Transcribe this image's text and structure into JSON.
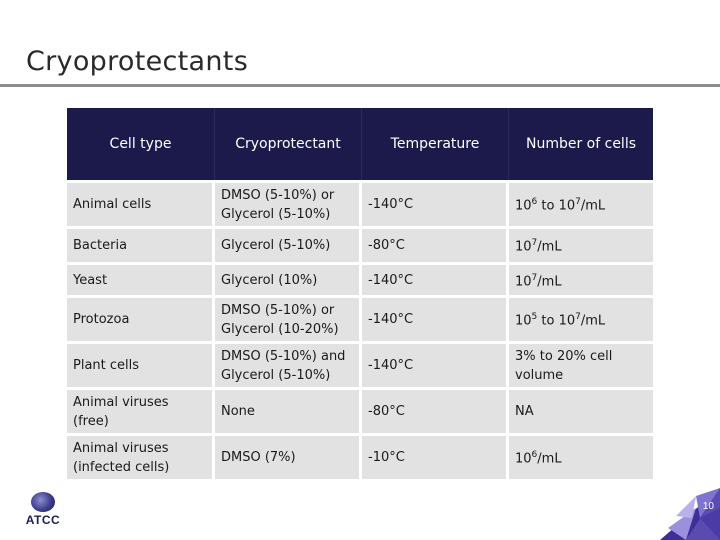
{
  "slide": {
    "title": "Cryoprotectants",
    "page_number": "10"
  },
  "logo": {
    "text": "ATCC"
  },
  "table": {
    "headers": [
      "Cell type",
      "Cryoprotectant",
      "Temperature",
      "Number of cells"
    ],
    "rows": [
      {
        "cell_type": [
          "Animal cells"
        ],
        "cryoprotectant": [
          "DMSO (5-10%)  or",
          "Glycerol (5-10%)"
        ],
        "temperature": "-140°C",
        "cells_base": "10",
        "cells_exp": "6",
        "cells_mid": " to 10",
        "cells_exp2": "7",
        "cells_tail": "/mL",
        "cells_lines": null
      },
      {
        "cell_type": [
          "Bacteria"
        ],
        "cryoprotectant": [
          "Glycerol (5-10%)"
        ],
        "temperature": "-80°C",
        "cells_base": "10",
        "cells_exp": "7",
        "cells_mid": "",
        "cells_exp2": "",
        "cells_tail": "/mL",
        "cells_lines": null
      },
      {
        "cell_type": [
          "Yeast"
        ],
        "cryoprotectant": [
          "Glycerol (10%)"
        ],
        "temperature": "-140°C",
        "cells_base": "10",
        "cells_exp": "7",
        "cells_mid": "",
        "cells_exp2": "",
        "cells_tail": "/mL",
        "cells_lines": null
      },
      {
        "cell_type": [
          "Protozoa"
        ],
        "cryoprotectant": [
          "DMSO (5-10%) or",
          "Glycerol (10-20%)"
        ],
        "temperature": "-140°C",
        "cells_base": "10",
        "cells_exp": "5",
        "cells_mid": " to 10",
        "cells_exp2": "7",
        "cells_tail": "/mL",
        "cells_lines": null
      },
      {
        "cell_type": [
          "Plant cells"
        ],
        "cryoprotectant": [
          "DMSO (5-10%) and",
          "Glycerol (5-10%)"
        ],
        "temperature": "-140°C",
        "cells_base": "",
        "cells_exp": "",
        "cells_mid": "",
        "cells_exp2": "",
        "cells_tail": "",
        "cells_lines": [
          "3% to 20% cell",
          "volume"
        ]
      },
      {
        "cell_type": [
          "Animal viruses",
          "(free)"
        ],
        "cryoprotectant": [
          "None"
        ],
        "temperature": "-80°C",
        "cells_base": "",
        "cells_exp": "",
        "cells_mid": "",
        "cells_exp2": "",
        "cells_tail": "",
        "cells_lines": [
          "NA"
        ]
      },
      {
        "cell_type": [
          "Animal viruses",
          "(infected cells)"
        ],
        "cryoprotectant": [
          "DMSO (7%)"
        ],
        "temperature": "-10°C",
        "cells_base": "10",
        "cells_exp": "6",
        "cells_mid": "",
        "cells_exp2": "",
        "cells_tail": "/mL",
        "cells_lines": null
      }
    ],
    "row_heights": [
      46,
      36,
      33,
      46,
      46,
      46,
      46
    ]
  },
  "colors": {
    "header_bg": "#1b1a4b",
    "cell_bg": "#e2e2e2",
    "title_rule": "#8c8c8c",
    "corner_purple": "#5a4bb0"
  }
}
